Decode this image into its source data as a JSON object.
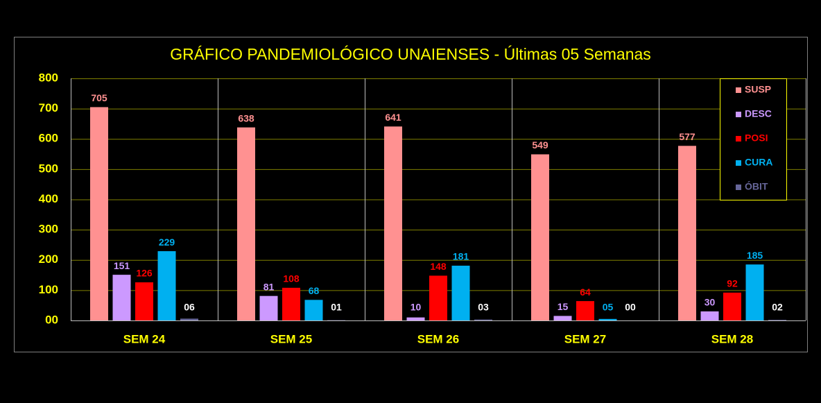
{
  "chart_data": {
    "type": "bar",
    "title": "GRÁFICO PANDEMIOLÓGICO UNAIENSES - Últimas 05 Semanas",
    "categories": [
      "SEM 24",
      "SEM 25",
      "SEM 26",
      "SEM 27",
      "SEM 28"
    ],
    "series": [
      {
        "name": "SUSP",
        "color": "#ff9191",
        "values": [
          705,
          638,
          641,
          549,
          577
        ]
      },
      {
        "name": "DESC",
        "color": "#cc99ff",
        "values": [
          151,
          81,
          10,
          15,
          30
        ]
      },
      {
        "name": "POSI",
        "color": "#ff0000",
        "values": [
          126,
          108,
          148,
          64,
          92
        ]
      },
      {
        "name": "CURA",
        "color": "#00b0f0",
        "values": [
          229,
          68,
          181,
          5,
          185
        ],
        "value_labels": [
          "229",
          "68",
          "181",
          "05",
          "185"
        ]
      },
      {
        "name": "ÓBIT",
        "color": "#666699",
        "values": [
          6,
          1,
          3,
          0,
          2
        ],
        "value_labels": [
          "06",
          "01",
          "03",
          "00",
          "02"
        ]
      }
    ],
    "ylim": [
      0,
      800
    ],
    "yticks": [
      {
        "value": 0,
        "label": "00"
      },
      100,
      200,
      300,
      400,
      500,
      600,
      700,
      800
    ],
    "grid": true,
    "legend": "top-right"
  }
}
